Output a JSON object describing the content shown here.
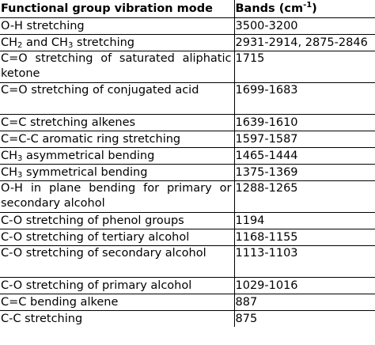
{
  "header": {
    "col1": "Functional group vibration mode",
    "col2_prefix": "Bands (cm",
    "col2_sup": "-1",
    "col2_suffix": ")"
  },
  "rows": [
    {
      "mode": "O-H stretching",
      "bands": "3500-3200"
    },
    {
      "mode": "CH2 and CH3 stretching",
      "bands": "2931-2914, 2875-2846"
    },
    {
      "mode": "C=O stretching of saturated aliphatic ketone",
      "bands": "1715"
    },
    {
      "mode": "C=O stretching of conjugated acid",
      "bands": "1699-1683"
    },
    {
      "mode": "C=C stretching alkenes",
      "bands": "1639-1610"
    },
    {
      "mode": "C=C-C aromatic ring stretching",
      "bands": "1597-1587"
    },
    {
      "mode": "CH3 asymmetrical bending",
      "bands": "1465-1444"
    },
    {
      "mode": "CH3 symmetrical bending",
      "bands": "1375-1369"
    },
    {
      "mode": "O-H in plane bending for primary or secondary alcohol",
      "bands": "1288-1265"
    },
    {
      "mode": "C-O stretching of phenol groups",
      "bands": "1194"
    },
    {
      "mode": "C-O stretching of tertiary alcohol",
      "bands": "1168-1155"
    },
    {
      "mode": "C-O stretching of secondary alcohol",
      "bands": "1113-1103"
    },
    {
      "mode": "C-O stretching of primary alcohol",
      "bands": "1029-1016"
    },
    {
      "mode": "C=C bending alkene",
      "bands": "887"
    },
    {
      "mode": "C-C stretching",
      "bands": "875"
    }
  ]
}
